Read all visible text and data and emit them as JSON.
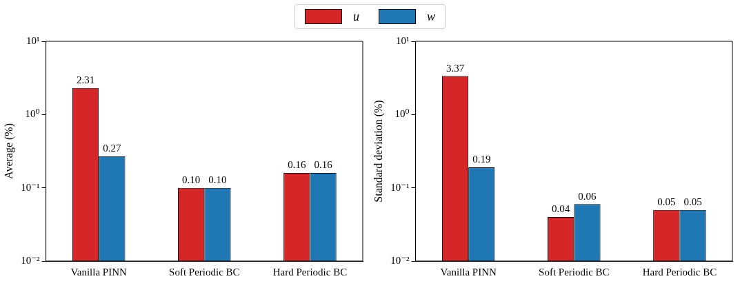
{
  "chart_data": [
    {
      "type": "bar",
      "ylabel": "Average (%)",
      "categories": [
        "Vanilla PINN",
        "Soft Periodic BC",
        "Hard Periodic BC"
      ],
      "log": "y",
      "ylim": [
        0.01,
        10
      ],
      "yticks": [
        {
          "value": 0.01,
          "label": "10⁻²"
        },
        {
          "value": 0.1,
          "label": "10⁻¹"
        },
        {
          "value": 1,
          "label": "10⁰"
        },
        {
          "value": 10,
          "label": "10¹"
        }
      ],
      "legend": "top",
      "grid": false,
      "series": [
        {
          "name": "u",
          "color": "#d62728",
          "values": [
            2.31,
            0.1,
            0.16
          ],
          "value_labels": [
            "2.31",
            "0.10",
            "0.16"
          ]
        },
        {
          "name": "w",
          "color": "#1f77b4",
          "values": [
            0.27,
            0.1,
            0.16
          ],
          "value_labels": [
            "0.27",
            "0.10",
            "0.16"
          ]
        }
      ]
    },
    {
      "type": "bar",
      "ylabel": "Standard deviation (%)",
      "categories": [
        "Vanilla PINN",
        "Soft Periodic BC",
        "Hard Periodic BC"
      ],
      "log": "y",
      "ylim": [
        0.01,
        10
      ],
      "yticks": [
        {
          "value": 0.01,
          "label": "10⁻²"
        },
        {
          "value": 0.1,
          "label": "10⁻¹"
        },
        {
          "value": 1,
          "label": "10⁰"
        },
        {
          "value": 10,
          "label": "10¹"
        }
      ],
      "grid": false,
      "series": [
        {
          "color": "#d62728",
          "values": [
            3.37,
            0.04,
            0.05
          ],
          "value_labels": [
            "3.37",
            "0.04",
            "0.05"
          ]
        },
        {
          "color": "#1f77b4",
          "values": [
            0.19,
            0.06,
            0.05
          ],
          "value_labels": [
            "0.19",
            "0.06",
            "0.05"
          ]
        }
      ]
    }
  ]
}
